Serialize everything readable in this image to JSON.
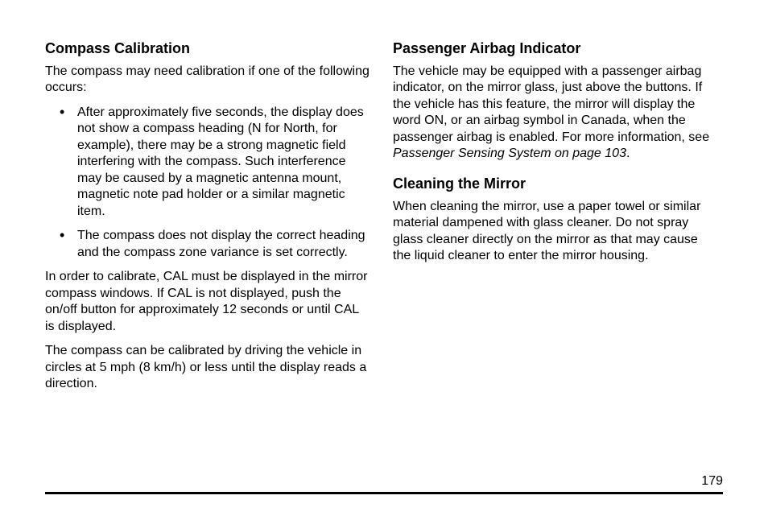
{
  "page_number": "179",
  "left": {
    "heading": "Compass Calibration",
    "intro": "The compass may need calibration if one of the following occurs:",
    "bullets": [
      "After approximately five seconds, the display does not show a compass heading (N for North, for example), there may be a strong magnetic field interfering with the compass. Such interference may be caused by a magnetic antenna mount, magnetic note pad holder or a similar magnetic item.",
      "The compass does not display the correct heading and the compass zone variance is set correctly."
    ],
    "para2": "In order to calibrate, CAL must be displayed in the mirror compass windows. If CAL is not displayed, push the on/off button for approximately 12 seconds or until CAL is displayed.",
    "para3": "The compass can be calibrated by driving the vehicle in circles at 5 mph (8 km/h) or less until the display reads a direction."
  },
  "right": {
    "heading1": "Passenger Airbag Indicator",
    "para1_a": "The vehicle may be equipped with a passenger airbag indicator, on the mirror glass, just above the buttons. If the vehicle has this feature, the mirror will display the word ON, or an airbag symbol in Canada, when the passenger airbag is enabled. For more information, see ",
    "para1_italic": "Passenger Sensing System on page 103",
    "para1_b": ".",
    "heading2": "Cleaning the Mirror",
    "para2": "When cleaning the mirror, use a paper towel or similar material dampened with glass cleaner. Do not spray glass cleaner directly on the mirror as that may cause the liquid cleaner to enter the mirror housing."
  }
}
